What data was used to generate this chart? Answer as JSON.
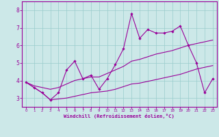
{
  "xlabel": "Windchill (Refroidissement éolien,°C)",
  "x_values": [
    0,
    1,
    2,
    3,
    4,
    5,
    6,
    7,
    8,
    9,
    10,
    11,
    12,
    13,
    14,
    15,
    16,
    17,
    18,
    19,
    20,
    21,
    22,
    23
  ],
  "line_main": [
    3.9,
    3.6,
    3.3,
    2.9,
    3.3,
    4.6,
    5.1,
    4.1,
    4.3,
    3.5,
    4.1,
    4.9,
    5.8,
    7.8,
    6.4,
    6.9,
    6.7,
    6.7,
    6.8,
    7.1,
    6.0,
    5.0,
    3.3,
    4.1
  ],
  "line_upper": [
    3.9,
    3.7,
    3.6,
    3.5,
    3.6,
    3.8,
    4.0,
    4.1,
    4.2,
    4.2,
    4.4,
    4.6,
    4.8,
    5.1,
    5.2,
    5.35,
    5.5,
    5.6,
    5.7,
    5.85,
    6.0,
    6.1,
    6.2,
    6.3
  ],
  "line_lower": [
    3.9,
    3.6,
    3.3,
    2.9,
    2.95,
    3.0,
    3.1,
    3.2,
    3.3,
    3.35,
    3.4,
    3.5,
    3.65,
    3.8,
    3.85,
    3.95,
    4.05,
    4.15,
    4.25,
    4.35,
    4.5,
    4.65,
    4.75,
    4.85
  ],
  "line_color": "#990099",
  "bg_color": "#cce8e8",
  "grid_color": "#99cccc",
  "ylim": [
    2.5,
    8.5
  ],
  "xlim": [
    -0.5,
    23.5
  ],
  "yticks": [
    3,
    4,
    5,
    6,
    7,
    8
  ],
  "xticks": [
    0,
    1,
    2,
    3,
    4,
    5,
    6,
    7,
    8,
    9,
    10,
    11,
    12,
    13,
    14,
    15,
    16,
    17,
    18,
    19,
    20,
    21,
    22,
    23
  ]
}
